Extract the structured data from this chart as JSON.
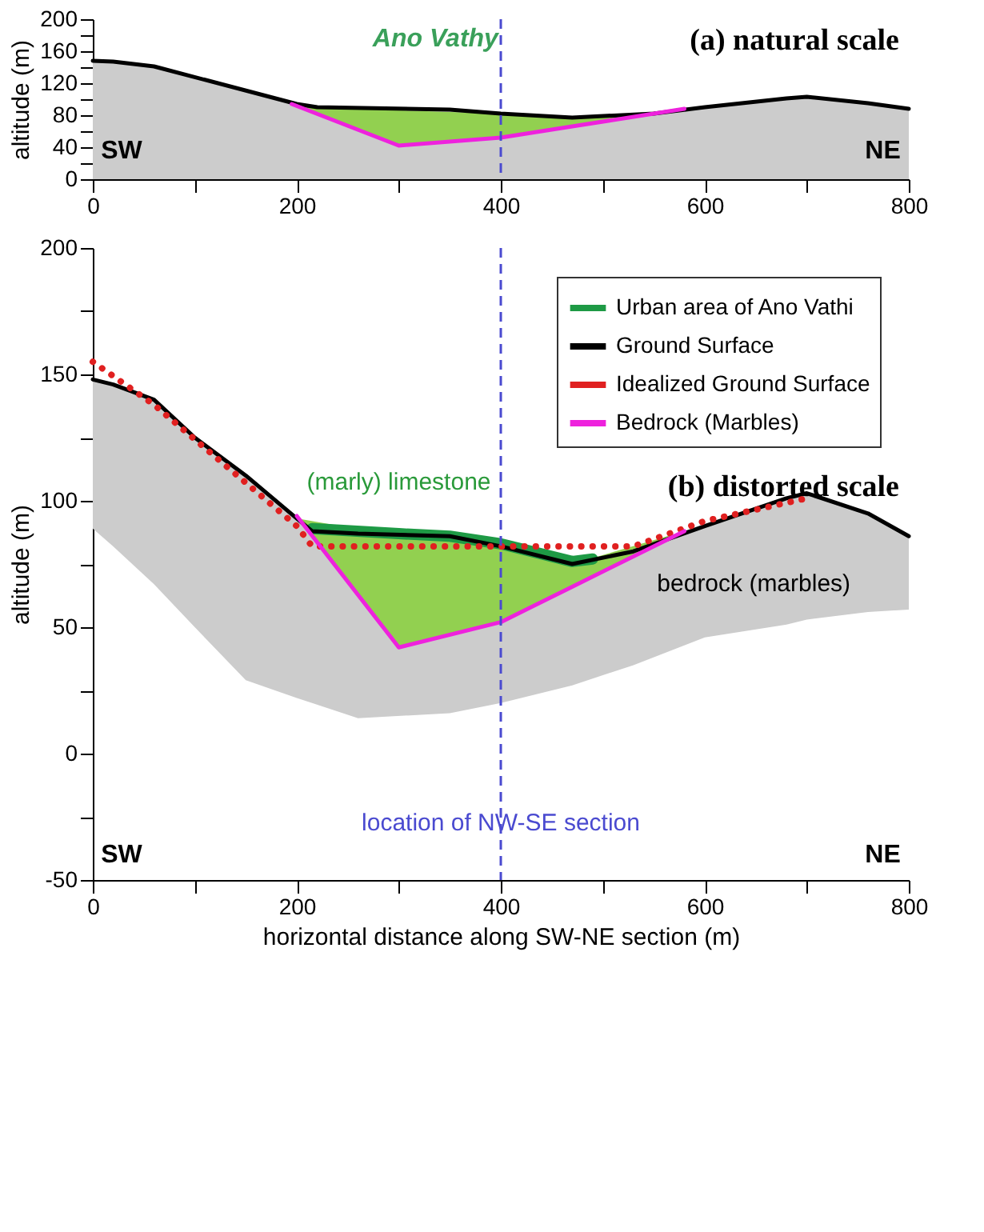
{
  "chart_data": [
    {
      "type": "line",
      "title": "(a) natural scale",
      "ylabel": "altitude (m)",
      "xlim": [
        0,
        800
      ],
      "ylim": [
        0,
        200
      ],
      "xticks": [
        0,
        {
          "value": 100,
          "label": null
        },
        200,
        {
          "value": 300,
          "label": null
        },
        400,
        {
          "value": 500,
          "label": null
        },
        600,
        {
          "value": 700,
          "label": null
        },
        800
      ],
      "yticks": [
        0,
        {
          "value": 20,
          "label": null
        },
        40,
        {
          "value": 60,
          "label": null
        },
        80,
        {
          "value": 100,
          "label": null
        },
        120,
        {
          "value": 140,
          "label": null
        },
        160,
        {
          "value": 180,
          "label": null
        },
        200
      ],
      "grid": false,
      "legend": false,
      "marker": "none",
      "series": [
        {
          "type": "line",
          "color": "#000000",
          "line_style": "solid",
          "x": [
            0,
            20,
            60,
            200,
            220,
            350,
            400,
            470,
            550,
            600,
            680,
            700,
            760,
            800
          ],
          "values": [
            148,
            147,
            141,
            94,
            90,
            87,
            82,
            77,
            82,
            90,
            101,
            103,
            95,
            88
          ],
          "lower": [
            0,
            0,
            0,
            0,
            0,
            0,
            0,
            0,
            0,
            0,
            0,
            0,
            0,
            0
          ],
          "upper": [
            148,
            147,
            141,
            94,
            90,
            87,
            82,
            77,
            82,
            90,
            101,
            103,
            95,
            88
          ]
        },
        {
          "type": "line",
          "color": "#ee22dd",
          "line_style": "solid",
          "x": [
            195,
            300,
            400,
            470,
            580
          ],
          "values": [
            94,
            42,
            52,
            66,
            88
          ],
          "lower": [
            94,
            42,
            52,
            66,
            88
          ],
          "upper": [
            94,
            86,
            82,
            77,
            87
          ]
        }
      ],
      "ref_lines": [
        {
          "axis": "x",
          "value": 400,
          "color": "#4a4ad0",
          "line_style": "dashed"
        }
      ],
      "annotations": [
        "Ano Vathy",
        "SW",
        "NE"
      ]
    },
    {
      "type": "line",
      "title": "(b) distorted scale",
      "xlabel": "horizontal distance along SW-NE section (m)",
      "ylabel": "altitude (m)",
      "xlim": [
        0,
        800
      ],
      "ylim": [
        -50,
        200
      ],
      "xticks": [
        0,
        {
          "value": 100,
          "label": null
        },
        200,
        {
          "value": 300,
          "label": null
        },
        400,
        {
          "value": 500,
          "label": null
        },
        600,
        {
          "value": 700,
          "label": null
        },
        800
      ],
      "yticks": [
        -50,
        {
          "value": -25,
          "label": null
        },
        0,
        {
          "value": 25,
          "label": null
        },
        50,
        {
          "value": 75,
          "label": null
        },
        100,
        {
          "value": 125,
          "label": null
        },
        150,
        {
          "value": 175,
          "label": null
        },
        200
      ],
      "grid": false,
      "legend": "top right",
      "marker": "none",
      "series": [
        {
          "name": "Urban area of Ano Vathi",
          "type": "line",
          "color": "#1e9a45",
          "line_style": "solid",
          "x": [
            215,
            300,
            350,
            400,
            470,
            490
          ],
          "values": [
            89,
            87,
            86,
            83,
            76,
            77
          ]
        },
        {
          "name": "Ground Surface",
          "type": "line",
          "color": "#000000",
          "line_style": "solid",
          "x": [
            0,
            20,
            60,
            100,
            150,
            200,
            215,
            260,
            350,
            400,
            470,
            530,
            600,
            680,
            700,
            760,
            800
          ],
          "values": [
            148,
            146,
            140,
            125,
            110,
            93,
            88,
            87,
            86,
            82,
            75,
            80,
            90,
            101,
            103,
            95,
            86
          ],
          "lower": [
            89,
            82,
            67,
            50,
            29,
            22,
            20,
            14,
            16,
            20,
            27,
            35,
            46,
            51,
            53,
            56,
            57
          ],
          "upper": [
            148,
            146,
            140,
            125,
            110,
            93,
            88,
            87,
            86,
            82,
            75,
            80,
            90,
            101,
            103,
            95,
            86
          ]
        },
        {
          "name": "Idealized Ground Surface",
          "type": "line",
          "color": "#e02020",
          "line_style": "dotted",
          "x": [
            0,
            60,
            200,
            215,
            400,
            530,
            600,
            700
          ],
          "values": [
            155,
            138,
            90,
            82,
            82,
            82,
            92,
            101
          ]
        },
        {
          "name": "Bedrock (Marbles)",
          "type": "line",
          "color": "#ee22dd",
          "line_style": "solid",
          "x": [
            200,
            300,
            400,
            470,
            580
          ],
          "values": [
            94,
            42,
            52,
            66,
            88
          ],
          "lower": [
            94,
            42,
            52,
            66,
            88
          ],
          "upper": [
            93,
            86,
            82,
            75,
            88
          ]
        }
      ],
      "ref_lines": [
        {
          "axis": "x",
          "value": 400,
          "label": "location of NW-SE section",
          "color": "#4a4ad0",
          "line_style": "dashed"
        }
      ],
      "annotations": [
        "(marly) limestone",
        "bedrock (marbles)",
        "SW",
        "NE"
      ]
    }
  ]
}
